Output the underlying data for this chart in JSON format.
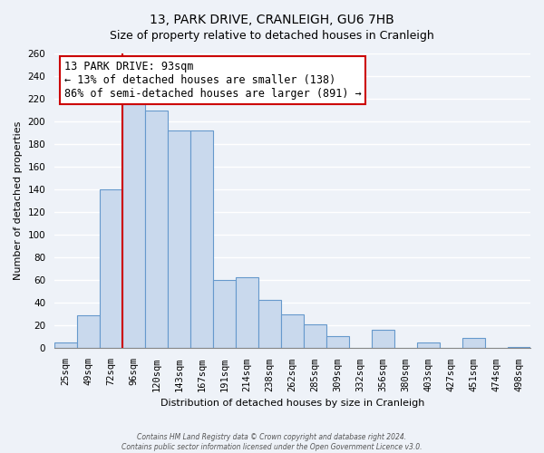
{
  "title": "13, PARK DRIVE, CRANLEIGH, GU6 7HB",
  "subtitle": "Size of property relative to detached houses in Cranleigh",
  "xlabel": "Distribution of detached houses by size in Cranleigh",
  "ylabel": "Number of detached properties",
  "categories": [
    "25sqm",
    "49sqm",
    "72sqm",
    "96sqm",
    "120sqm",
    "143sqm",
    "167sqm",
    "191sqm",
    "214sqm",
    "238sqm",
    "262sqm",
    "285sqm",
    "309sqm",
    "332sqm",
    "356sqm",
    "380sqm",
    "403sqm",
    "427sqm",
    "451sqm",
    "474sqm",
    "498sqm"
  ],
  "values": [
    5,
    29,
    140,
    215,
    210,
    192,
    192,
    60,
    63,
    43,
    30,
    21,
    11,
    0,
    16,
    0,
    5,
    0,
    9,
    0,
    1
  ],
  "bar_color": "#c9d9ed",
  "bar_edge_color": "#6699cc",
  "property_line_color": "#cc0000",
  "property_line_index": 3,
  "annotation_title": "13 PARK DRIVE: 93sqm",
  "annotation_line1": "← 13% of detached houses are smaller (138)",
  "annotation_line2": "86% of semi-detached houses are larger (891) →",
  "annotation_box_color": "#ffffff",
  "annotation_box_edge_color": "#cc0000",
  "ylim": [
    0,
    260
  ],
  "yticks": [
    0,
    20,
    40,
    60,
    80,
    100,
    120,
    140,
    160,
    180,
    200,
    220,
    240,
    260
  ],
  "footer_line1": "Contains HM Land Registry data © Crown copyright and database right 2024.",
  "footer_line2": "Contains public sector information licensed under the Open Government Licence v3.0.",
  "background_color": "#eef2f8",
  "grid_color": "#ffffff",
  "title_fontsize": 10,
  "subtitle_fontsize": 9,
  "ylabel_fontsize": 8,
  "xlabel_fontsize": 8,
  "tick_fontsize": 7.5,
  "annotation_fontsize": 8.5
}
